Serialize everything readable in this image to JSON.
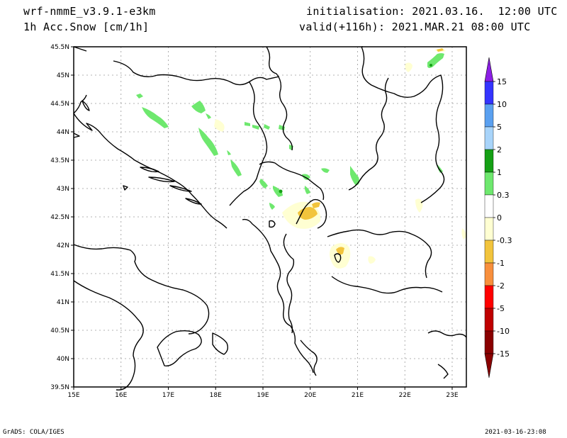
{
  "header": {
    "model": "wrf-nmmE_v3.9.1-e3km",
    "parameter": "1h Acc.Snow [cm/1h]",
    "initialisation": "initialisation: 2021.03.16.  12:00 UTC",
    "valid": "valid(+116h): 2021.MAR.21 08:00 UTC"
  },
  "map": {
    "lat_labels": [
      "45.5N",
      "45N",
      "44.5N",
      "44N",
      "43.5N",
      "43N",
      "42.5N",
      "42N",
      "41.5N",
      "41N",
      "40.5N",
      "40N",
      "39.5N"
    ],
    "lon_labels": [
      "15E",
      "16E",
      "17E",
      "18E",
      "19E",
      "20E",
      "21E",
      "22E",
      "23E"
    ],
    "lat_range": [
      39.5,
      45.5
    ],
    "lon_range": [
      15,
      23.3
    ],
    "grid": true,
    "coastline_color": "#000000",
    "gridline_color": "#9a9a9a"
  },
  "colorbar": {
    "labels": [
      "15",
      "10",
      "5",
      "2",
      "1",
      "0.3",
      "0",
      "-0.3",
      "-1",
      "-2",
      "-5",
      "-10",
      "-15"
    ],
    "colors": [
      "#8c1fe6",
      "#3434ff",
      "#5aa0f0",
      "#a8d4fa",
      "#15a015",
      "#6ee86e",
      "#ffffff",
      "#ffffd2",
      "#f2c43c",
      "#f88f3c",
      "#ff0000",
      "#bf0000",
      "#8a0000"
    ]
  },
  "footer": {
    "left": "GrADS: COLA/IGES",
    "right": "2021-03-16-23:08"
  }
}
